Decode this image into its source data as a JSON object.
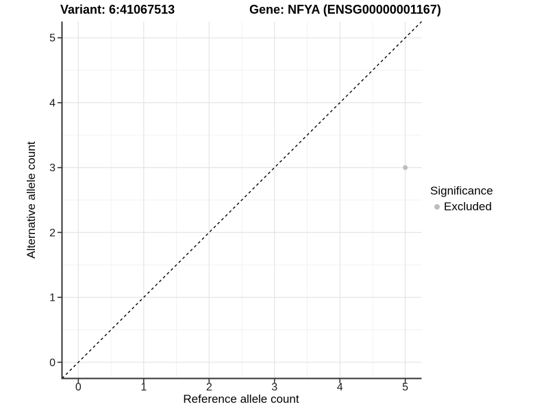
{
  "chart_data": {
    "type": "scatter",
    "title_left": "Variant: 6:41067513",
    "title_right": "Gene: NFYA (ENSG00000001167)",
    "xlabel": "Reference allele count",
    "ylabel": "Alternative allele count",
    "xlim": [
      -0.25,
      5.25
    ],
    "ylim": [
      -0.25,
      5.25
    ],
    "x_ticks": [
      0,
      1,
      2,
      3,
      4,
      5
    ],
    "y_ticks": [
      0,
      1,
      2,
      3,
      4,
      5
    ],
    "x_minor": [
      0.5,
      1.5,
      2.5,
      3.5,
      4.5
    ],
    "y_minor": [
      0.5,
      1.5,
      2.5,
      3.5,
      4.5
    ],
    "grid": "major+minor",
    "series": [
      {
        "name": "Excluded",
        "color": "#bdbdbd",
        "points": [
          {
            "x": 5,
            "y": 3
          }
        ]
      }
    ],
    "reference_line": {
      "slope": 1,
      "intercept": 0,
      "style": "dashed",
      "color": "#000000"
    },
    "legend": {
      "title": "Significance",
      "position": "right",
      "items": [
        {
          "label": "Excluded",
          "color": "#bdbdbd"
        }
      ]
    },
    "colors": {
      "grid_major": "#e4e4e4",
      "grid_minor": "#f2f2f2",
      "axis": "#333333",
      "tick_text": "#1a1a1a"
    }
  }
}
